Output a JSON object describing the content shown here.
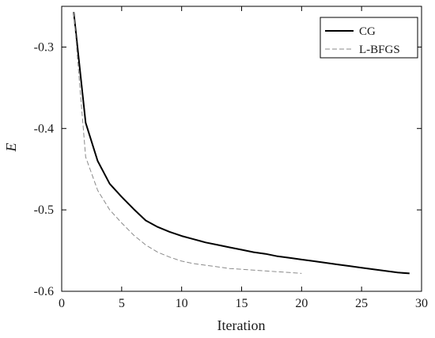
{
  "chart_data": {
    "type": "line",
    "title": "",
    "xlabel": "Iteration",
    "ylabel": "E",
    "xlim": [
      0,
      30
    ],
    "ylim": [
      -0.6,
      -0.25
    ],
    "xticks": [
      0,
      5,
      10,
      15,
      20,
      25,
      30
    ],
    "xtick_labels": [
      "0",
      "5",
      "10",
      "15",
      "20",
      "25",
      "30"
    ],
    "yticks": [
      -0.3,
      -0.4,
      -0.5,
      -0.6
    ],
    "ytick_labels": [
      "-0.3",
      "-0.4",
      "-0.5",
      "-0.6"
    ],
    "grid": false,
    "legend_position": "top-right",
    "series": [
      {
        "name": "CG",
        "style": "solid",
        "color": "#000000",
        "x": [
          1,
          2,
          3,
          4,
          5,
          6,
          7,
          8,
          9,
          10,
          11,
          12,
          13,
          14,
          15,
          16,
          17,
          18,
          19,
          20,
          21,
          22,
          23,
          24,
          25,
          26,
          27,
          28,
          29
        ],
        "y": [
          -0.257,
          -0.393,
          -0.44,
          -0.468,
          -0.484,
          -0.499,
          -0.513,
          -0.521,
          -0.527,
          -0.532,
          -0.536,
          -0.54,
          -0.543,
          -0.546,
          -0.549,
          -0.552,
          -0.554,
          -0.557,
          -0.559,
          -0.561,
          -0.563,
          -0.565,
          -0.567,
          -0.569,
          -0.571,
          -0.573,
          -0.575,
          -0.577,
          -0.578
        ]
      },
      {
        "name": "L-BFGS",
        "style": "dashed",
        "color": "#8a8a8a",
        "x": [
          1,
          2,
          3,
          4,
          5,
          6,
          7,
          8,
          9,
          10,
          11,
          12,
          13,
          14,
          15,
          16,
          17,
          18,
          19,
          20
        ],
        "y": [
          -0.257,
          -0.435,
          -0.476,
          -0.5,
          -0.516,
          -0.531,
          -0.543,
          -0.552,
          -0.558,
          -0.563,
          -0.566,
          -0.568,
          -0.57,
          -0.572,
          -0.573,
          -0.574,
          -0.575,
          -0.576,
          -0.577,
          -0.578
        ]
      }
    ]
  }
}
